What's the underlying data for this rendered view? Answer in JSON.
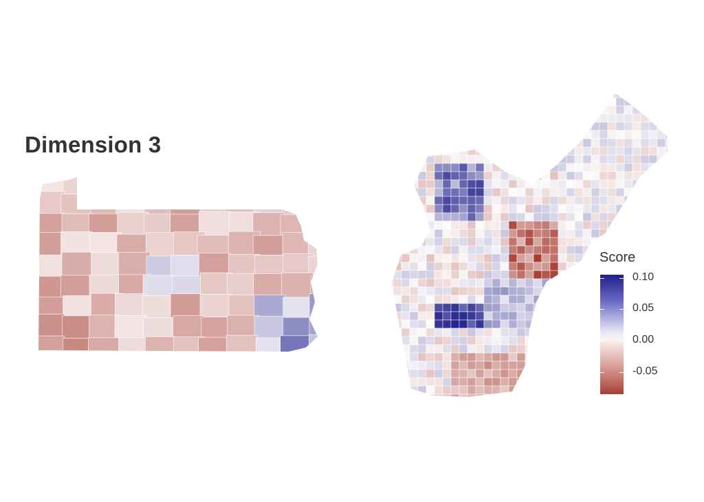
{
  "title": "Dimension 3",
  "legend": {
    "title": "Score",
    "breaks": [
      {
        "label": "0.10",
        "value": 0.1
      },
      {
        "label": "0.05",
        "value": 0.05
      },
      {
        "label": "0.00",
        "value": 0.0
      },
      {
        "label": "-0.05",
        "value": -0.05
      }
    ],
    "range": [
      -0.085,
      0.105
    ],
    "colors": {
      "high": "#1f1f8c",
      "mid": "#ffffff",
      "low": "#a83f35"
    }
  },
  "maps": [
    {
      "name": "pennsylvania-counties-map"
    },
    {
      "name": "philadelphia-tracts-map"
    }
  ]
}
